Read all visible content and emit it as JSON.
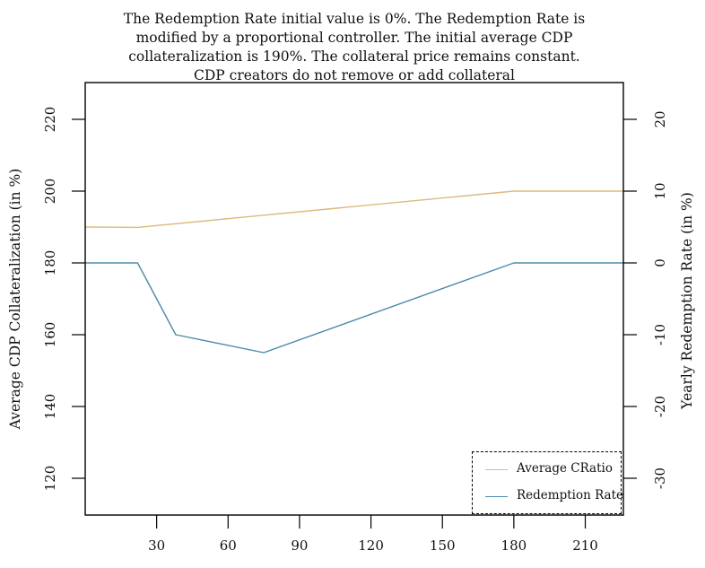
{
  "title": "The Redemption Rate initial value is 0%. The Redemption Rate is\nmodified by a proportional controller. The initial average CDP\ncollateralization is 190%. The collateral price remains constant.\nCDP creators do not remove or add collateral",
  "legend": {
    "items": [
      {
        "label": "Average CRatio"
      },
      {
        "label": "Redemption Rate"
      }
    ]
  },
  "chart_data": {
    "type": "line",
    "title": "The Redemption Rate initial value is 0%. The Redemption Rate is modified by a proportional controller. The initial average CDP collateralization is 190%. The collateral price remains constant. CDP creators do not remove or add collateral",
    "left_ylabel": "Average CDP Collateralization (in %)",
    "right_ylabel": "Yearly Redemption Rate (in %)",
    "xlabel": "",
    "x_ticks": [
      30,
      60,
      90,
      120,
      150,
      180,
      210
    ],
    "left_y_ticks": [
      120,
      140,
      160,
      180,
      200,
      220
    ],
    "right_y_ticks": [
      -30,
      -20,
      -10,
      0,
      10,
      20
    ],
    "xlim": [
      0,
      226
    ],
    "left_ylim": [
      109.75,
      230.25
    ],
    "right_ylim": [
      -35.125,
      25.125
    ],
    "grid": false,
    "legend_position": "bottom-right",
    "frame_color": "#000000",
    "series": [
      {
        "name": "Average CRatio",
        "yaxis": "left",
        "color": "#dcba7a",
        "points": [
          [
            0,
            190
          ],
          [
            22,
            189.9
          ],
          [
            180,
            200
          ],
          [
            226,
            200
          ]
        ]
      },
      {
        "name": "Redemption Rate",
        "yaxis": "right",
        "color": "#4b89aa",
        "points": [
          [
            0,
            0
          ],
          [
            22,
            0
          ],
          [
            38,
            -10
          ],
          [
            75,
            -12.5
          ],
          [
            180,
            0
          ],
          [
            226,
            0
          ]
        ]
      }
    ]
  }
}
